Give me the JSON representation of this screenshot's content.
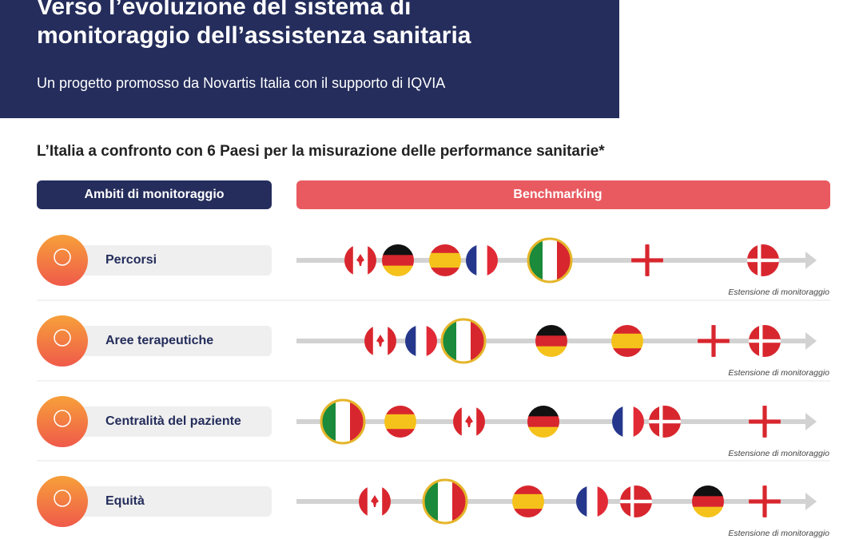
{
  "header": {
    "title_lines": [
      "Verso l’evoluzione del sistema di",
      "monitoraggio dell’assistenza sanitaria"
    ],
    "subtitle": "Un progetto promosso da Novartis Italia con il supporto di IQVIA"
  },
  "section_title": "L’Italia a confronto con 6 Paesi per la misurazione delle performance sanitarie*",
  "columns": [
    "Ambiti di monitoraggio",
    "Benchmarking"
  ],
  "rows": [
    {
      "label": "Percorsi",
      "note": "Estensione di monitoraggio"
    },
    {
      "label": "Aree terapeutiche",
      "note": "Estensione di monitoraggio"
    },
    {
      "label": "Centralità del paziente",
      "note": "Estensione di monitoraggio"
    },
    {
      "label": "Equità",
      "note": "Estensione di monitoraggio"
    }
  ]
}
